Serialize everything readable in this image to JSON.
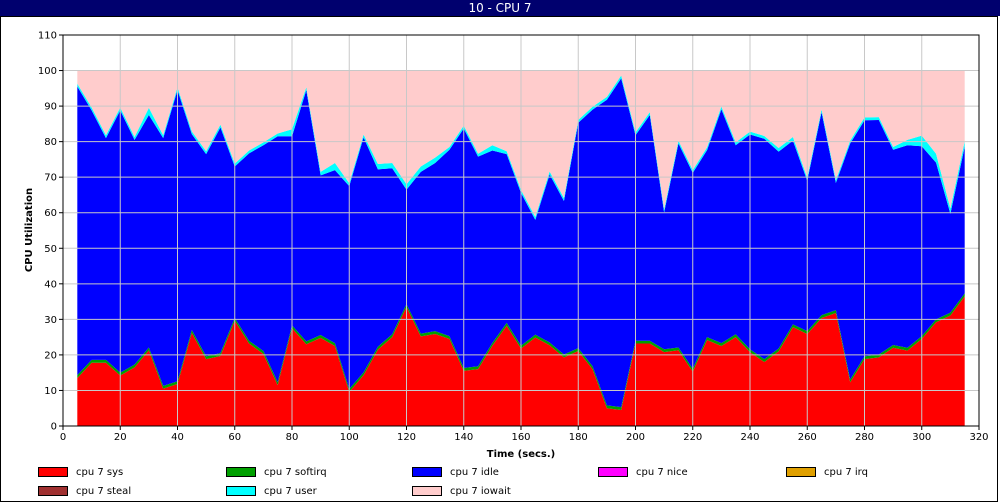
{
  "window": {
    "title": "10 - CPU 7"
  },
  "chart_data": {
    "type": "area",
    "stacked": true,
    "xlabel": "Time (secs.)",
    "ylabel": "CPU Utilization",
    "xlim": [
      0,
      320
    ],
    "ylim": [
      0,
      110
    ],
    "xticks": [
      0,
      20,
      40,
      60,
      80,
      100,
      120,
      140,
      160,
      180,
      200,
      220,
      240,
      260,
      280,
      300,
      320
    ],
    "yticks": [
      0,
      10,
      20,
      30,
      40,
      50,
      60,
      70,
      80,
      90,
      100,
      110
    ],
    "grid": true,
    "legend_position": "bottom",
    "x": [
      5,
      10,
      15,
      20,
      25,
      30,
      35,
      40,
      45,
      50,
      55,
      60,
      65,
      70,
      75,
      80,
      85,
      90,
      95,
      100,
      105,
      110,
      115,
      120,
      125,
      130,
      135,
      140,
      145,
      150,
      155,
      160,
      165,
      170,
      175,
      180,
      185,
      190,
      195,
      200,
      205,
      210,
      215,
      220,
      225,
      230,
      235,
      240,
      245,
      250,
      255,
      260,
      265,
      270,
      275,
      280,
      285,
      290,
      295,
      300,
      305,
      310,
      315
    ],
    "series": [
      {
        "name": "cpu 7 sys",
        "color": "#ff0000",
        "values": [
          13.5,
          17.8,
          17.8,
          14.2,
          16.5,
          21.3,
          10.5,
          11.8,
          26.2,
          18.8,
          19.7,
          29.6,
          23.2,
          20.3,
          11.5,
          27.5,
          23,
          24.8,
          22.5,
          9.6,
          14.3,
          21.5,
          25,
          33.5,
          25.2,
          25.9,
          24.5,
          15.5,
          16,
          22.6,
          28.2,
          21.8,
          24.9,
          22.7,
          19.3,
          21.1,
          16,
          5,
          4.5,
          23.2,
          23.2,
          20.8,
          21.3,
          15.3,
          24.2,
          22.5,
          25,
          20.8,
          18,
          21,
          27.8,
          25.9,
          30.4,
          31.8,
          12.3,
          18.8,
          19.3,
          22,
          21.2,
          24.5,
          29.2,
          31.1,
          36.5
        ]
      },
      {
        "name": "cpu 7 softirq",
        "color": "#00a000",
        "values": [
          0.8,
          0.8,
          0.8,
          0.8,
          0.8,
          0.8,
          0.8,
          0.8,
          0.8,
          0.8,
          0.8,
          0.8,
          0.8,
          0.8,
          0.8,
          0.8,
          0.8,
          0.8,
          0.8,
          0.8,
          0.8,
          0.8,
          0.8,
          0.8,
          0.8,
          0.8,
          0.8,
          0.8,
          0.8,
          0.8,
          0.8,
          0.8,
          0.8,
          0.8,
          0.8,
          0.8,
          0.8,
          0.8,
          0.8,
          0.8,
          0.8,
          0.8,
          0.8,
          0.8,
          0.8,
          0.8,
          0.8,
          0.8,
          0.8,
          0.8,
          0.8,
          0.8,
          0.8,
          0.8,
          0.8,
          0.8,
          0.8,
          0.8,
          0.8,
          0.8,
          0.8,
          0.8,
          0.8
        ]
      },
      {
        "name": "cpu 7 idle",
        "color": "#0000ff",
        "values": [
          81.2,
          70.2,
          62.4,
          73.8,
          63.2,
          65.4,
          69.7,
          81.9,
          55.1,
          56.9,
          63.5,
          42.6,
          52.7,
          57.9,
          69.2,
          53.2,
          70.7,
          44.9,
          48.7,
          57.1,
          66.1,
          49.9,
          46.7,
          32.2,
          45.5,
          47.3,
          52.4,
          67.4,
          59,
          54.1,
          47.5,
          43,
          32.3,
          47.3,
          43.2,
          63.4,
          72.2,
          86,
          92.5,
          57.8,
          63.5,
          38.5,
          57.4,
          55.1,
          52.6,
          65.8,
          53.2,
          60.4,
          62,
          55.4,
          51.7,
          42.3,
          57.1,
          35.8,
          66.4,
          66.4,
          66,
          54.9,
          57,
          53.4,
          44.1,
          27.8,
          41.3
        ]
      },
      {
        "name": "cpu 7 nice",
        "color": "#ff00ff",
        "values": [
          0,
          0,
          0,
          0,
          0,
          0,
          0,
          0,
          0,
          0,
          0,
          0,
          0,
          0,
          0,
          0,
          0,
          0,
          0,
          0,
          0,
          0,
          0,
          0,
          0,
          0,
          0,
          0,
          0,
          0,
          0,
          0,
          0,
          0,
          0,
          0,
          0,
          0,
          0,
          0,
          0,
          0,
          0,
          0,
          0,
          0,
          0,
          0,
          0,
          0,
          0,
          0,
          0,
          0,
          0,
          0,
          0,
          0,
          0,
          0,
          0,
          0,
          0
        ]
      },
      {
        "name": "cpu 7 irq",
        "color": "#e0a000",
        "values": [
          0,
          0,
          0,
          0,
          0,
          0,
          0,
          0,
          0,
          0,
          0,
          0,
          0,
          0,
          0,
          0,
          0,
          0,
          0,
          0,
          0,
          0,
          0,
          0,
          0,
          0,
          0,
          0,
          0,
          0,
          0,
          0,
          0,
          0,
          0,
          0,
          0,
          0,
          0,
          0,
          0,
          0,
          0,
          0,
          0,
          0,
          0,
          0,
          0,
          0,
          0,
          0,
          0,
          0,
          0,
          0,
          0,
          0,
          0,
          0,
          0,
          0,
          0
        ]
      },
      {
        "name": "cpu 7 steal",
        "color": "#a03030",
        "values": [
          0,
          0,
          0,
          0,
          0,
          0,
          0,
          0,
          0,
          0,
          0,
          0,
          0,
          0,
          0,
          0,
          0,
          0,
          0,
          0,
          0,
          0,
          0,
          0,
          0,
          0,
          0,
          0,
          0,
          0,
          0,
          0,
          0,
          0,
          0,
          0,
          0,
          0,
          0,
          0,
          0,
          0,
          0,
          0,
          0,
          0,
          0,
          0,
          0,
          0,
          0,
          0,
          0,
          0,
          0,
          0,
          0,
          0,
          0,
          0,
          0,
          0,
          0
        ]
      },
      {
        "name": "cpu 7 user",
        "color": "#00ffff",
        "values": [
          0.8,
          0.8,
          0.8,
          0.8,
          0.8,
          2,
          0.8,
          0.8,
          0.8,
          0.8,
          0.8,
          0.8,
          0.8,
          0.8,
          0.8,
          2,
          0.8,
          1,
          2,
          0.8,
          0.8,
          1.5,
          1.5,
          1.5,
          1.5,
          1.5,
          0.8,
          0.8,
          0.8,
          1.5,
          0.8,
          0.8,
          0.8,
          0.8,
          0.8,
          0.8,
          0.8,
          0.8,
          0.8,
          0.8,
          0.8,
          0.8,
          0.8,
          0.8,
          0.8,
          0.8,
          0.8,
          0.8,
          0.8,
          1,
          1,
          0.8,
          0.8,
          0.8,
          0.8,
          0.8,
          0.8,
          0.8,
          1.5,
          3,
          2.5,
          1.5,
          1.5
        ]
      },
      {
        "name": "cpu 7 iowait",
        "color": "#ffcccc",
        "values": [
          3.7,
          10.4,
          18.2,
          10.4,
          18.7,
          10.5,
          18.2,
          4.7,
          17.1,
          22.7,
          15.2,
          26.2,
          22.5,
          20.2,
          17.7,
          16.5,
          4.7,
          28.5,
          26,
          31.7,
          18,
          26.3,
          26,
          32,
          27,
          24.5,
          21.5,
          15.5,
          23.4,
          21,
          22.7,
          33.6,
          41.2,
          28.4,
          35.9,
          13.9,
          10.2,
          7.4,
          1.4,
          17.4,
          11.7,
          39.1,
          19.7,
          28,
          21.6,
          10.1,
          20.2,
          17.2,
          18.4,
          21.8,
          18.7,
          30.2,
          10.9,
          30.8,
          19.7,
          13.2,
          13.1,
          21.5,
          19.5,
          18.3,
          23.4,
          38.8,
          19.9
        ]
      }
    ]
  }
}
